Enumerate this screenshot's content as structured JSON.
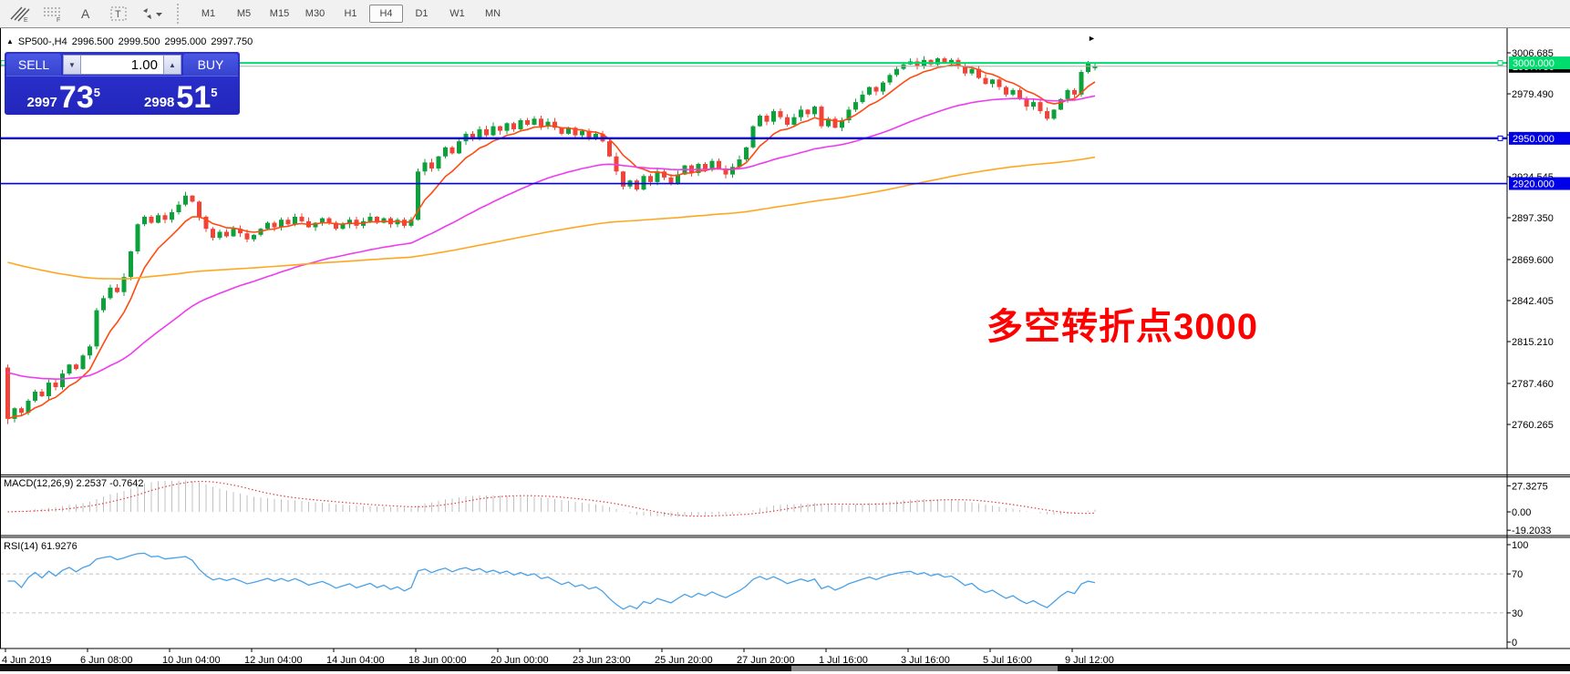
{
  "toolbar": {
    "icons": [
      {
        "name": "elliott-lines-icon",
        "label": "E"
      },
      {
        "name": "fibonacci-icon",
        "label": "F"
      },
      {
        "name": "text-icon",
        "label": "A"
      },
      {
        "name": "label-icon",
        "label": "T"
      },
      {
        "name": "arrows-icon",
        "label": "▾"
      }
    ],
    "timeframes": [
      "M1",
      "M5",
      "M15",
      "M30",
      "H1",
      "H4",
      "D1",
      "W1",
      "MN"
    ],
    "active_timeframe": "H4"
  },
  "chart": {
    "title_marker": "▲",
    "symbol": "SP500-,H4",
    "quote_open": "2996.500",
    "quote_high": "2999.500",
    "quote_low": "2995.000",
    "quote_close": "2997.750",
    "shift_marker": "►"
  },
  "trade_panel": {
    "sell_label": "SELL",
    "buy_label": "BUY",
    "volume": "1.00",
    "volume_down": "▼",
    "volume_up": "▲",
    "sell_price": {
      "small": "2997",
      "big": "73",
      "sup": "5"
    },
    "buy_price": {
      "small": "2998",
      "big": "51",
      "sup": "5"
    }
  },
  "price_axis": {
    "labels": [
      "3006.685",
      "2979.490",
      "2952.295",
      "2924.545",
      "2897.350",
      "2869.600",
      "2842.405",
      "2815.210",
      "2787.460",
      "2760.265"
    ]
  },
  "levels": {
    "resistance": {
      "value": 3000.0,
      "label": "3000.000",
      "color": "#00dc6e"
    },
    "current": {
      "value": 2997.75,
      "label": "2997.750",
      "color": "#000000"
    },
    "support1": {
      "value": 2950.0,
      "label": "2950.000",
      "color": "#0000e8"
    },
    "support2": {
      "value": 2920.0,
      "label": "2920.000",
      "color": "#0000e8"
    }
  },
  "annotation": {
    "text": "多空转折点3000",
    "color": "#ff0000"
  },
  "macd_pane": {
    "label": "MACD(12,26,9) 2.2537 -0.7642",
    "axis_labels": [
      "27.3275",
      "0.00",
      "-19.2033"
    ]
  },
  "rsi_pane": {
    "label": "RSI(14) 61.9276",
    "axis_labels": [
      "100",
      "70",
      "30",
      "0"
    ]
  },
  "time_axis": {
    "labels": [
      "4 Jun 2019",
      "6 Jun 08:00",
      "10 Jun 04:00",
      "12 Jun 04:00",
      "14 Jun 04:00",
      "18 Jun 00:00",
      "20 Jun 00:00",
      "23 Jun 23:00",
      "25 Jun 20:00",
      "27 Jun 20:00",
      "1 Jul 16:00",
      "3 Jul 16:00",
      "5 Jul 16:00",
      "9 Jul 12:00"
    ]
  },
  "chart_data": {
    "type": "candlestick",
    "symbol": "SP500-",
    "timeframe": "H4",
    "visible_range": {
      "price_min": 2760.265,
      "price_max": 3006.685
    },
    "price_ticks": [
      3006.685,
      2979.49,
      2952.295,
      2924.545,
      2897.35,
      2869.6,
      2842.405,
      2815.21,
      2787.46,
      2760.265
    ],
    "horizontal_levels": [
      3000.0,
      2950.0,
      2920.0
    ],
    "last_candle_ohlc": {
      "open": 2996.5,
      "high": 2999.5,
      "low": 2995.0,
      "close": 2997.75
    },
    "first_open": 2798,
    "closes": [
      2764,
      2771,
      2768,
      2776,
      2782,
      2779,
      2788,
      2785,
      2794,
      2800,
      2797,
      2806,
      2812,
      2836,
      2844,
      2851,
      2848,
      2858,
      2875,
      2893,
      2898,
      2894,
      2899,
      2896,
      2901,
      2906,
      2912,
      2908,
      2898,
      2890,
      2884,
      2888,
      2885,
      2890,
      2887,
      2883,
      2886,
      2890,
      2894,
      2891,
      2896,
      2893,
      2898,
      2895,
      2891,
      2894,
      2897,
      2894,
      2890,
      2893,
      2896,
      2892,
      2895,
      2898,
      2894,
      2897,
      2893,
      2896,
      2892,
      2896,
      2928,
      2934,
      2930,
      2938,
      2944,
      2940,
      2948,
      2953,
      2950,
      2956,
      2952,
      2958,
      2955,
      2960,
      2956,
      2962,
      2959,
      2963,
      2958,
      2961,
      2957,
      2953,
      2957,
      2952,
      2955,
      2950,
      2953,
      2948,
      2938,
      2928,
      2918,
      2922,
      2916,
      2925,
      2921,
      2928,
      2924,
      2920,
      2926,
      2932,
      2927,
      2933,
      2929,
      2935,
      2930,
      2926,
      2931,
      2936,
      2944,
      2958,
      2965,
      2961,
      2968,
      2964,
      2959,
      2964,
      2969,
      2966,
      2971,
      2958,
      2963,
      2957,
      2962,
      2969,
      2974,
      2979,
      2984,
      2981,
      2987,
      2992,
      2996,
      2999,
      3001,
      2998,
      3002,
      2999,
      3003,
      3000,
      3002,
      2998,
      2993,
      2996,
      2990,
      2986,
      2989,
      2984,
      2979,
      2982,
      2976,
      2971,
      2974,
      2968,
      2963,
      2969,
      2976,
      2982,
      2979,
      2994,
      2999.5,
      2997.75
    ],
    "candle_colors": {
      "up": "#0da13c",
      "down": "#f04438"
    },
    "moving_averages": [
      {
        "name": "fast",
        "period": 8,
        "color": "#ff4a11",
        "seed": null
      },
      {
        "name": "medium",
        "period": 44,
        "color": "#ee3bee",
        "seed": 2796
      },
      {
        "name": "slow",
        "period": 170,
        "color": "#ffa722",
        "seed": 2869
      }
    ],
    "indicators": {
      "macd": {
        "fast": 12,
        "slow": 26,
        "signal": 9,
        "value": 2.2537,
        "signal_value": -0.7642,
        "histogram_color": "#c0c0c0",
        "signal_color": "#e04040",
        "axis": [
          27.3275,
          0.0,
          -19.2033
        ]
      },
      "rsi": {
        "period": 14,
        "value": 61.9276,
        "line_color": "#49a1e8",
        "levels": [
          70,
          30
        ],
        "axis": [
          100,
          70,
          30,
          0
        ]
      }
    }
  }
}
